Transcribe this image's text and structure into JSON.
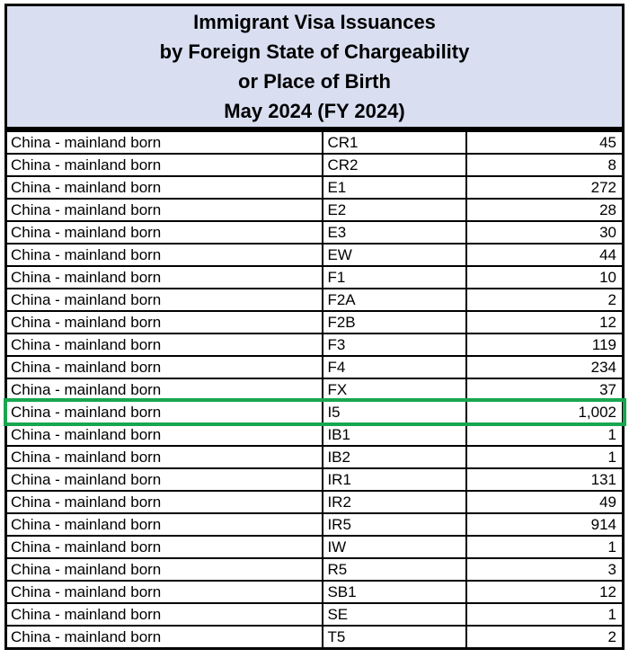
{
  "document": {
    "title_lines": [
      "Immigrant Visa Issuances",
      "by Foreign State of Chargeability",
      "or Place of Birth",
      "May 2024 (FY 2024)"
    ]
  },
  "table": {
    "columns": [
      "place_of_birth",
      "visa_class",
      "issuances"
    ],
    "rows": [
      {
        "place": "China - mainland born",
        "visa_class": "CR1",
        "issuances": "45"
      },
      {
        "place": "China - mainland born",
        "visa_class": "CR2",
        "issuances": "8"
      },
      {
        "place": "China - mainland born",
        "visa_class": "E1",
        "issuances": "272"
      },
      {
        "place": "China - mainland born",
        "visa_class": "E2",
        "issuances": "28"
      },
      {
        "place": "China - mainland born",
        "visa_class": "E3",
        "issuances": "30"
      },
      {
        "place": "China - mainland born",
        "visa_class": "EW",
        "issuances": "44"
      },
      {
        "place": "China - mainland born",
        "visa_class": "F1",
        "issuances": "10"
      },
      {
        "place": "China - mainland born",
        "visa_class": "F2A",
        "issuances": "2"
      },
      {
        "place": "China - mainland born",
        "visa_class": "F2B",
        "issuances": "12"
      },
      {
        "place": "China - mainland born",
        "visa_class": "F3",
        "issuances": "119"
      },
      {
        "place": "China - mainland born",
        "visa_class": "F4",
        "issuances": "234"
      },
      {
        "place": "China - mainland born",
        "visa_class": "FX",
        "issuances": "37"
      },
      {
        "place": "China - mainland born",
        "visa_class": "I5",
        "issuances": "1,002"
      },
      {
        "place": "China - mainland born",
        "visa_class": "IB1",
        "issuances": "1"
      },
      {
        "place": "China - mainland born",
        "visa_class": "IB2",
        "issuances": "1"
      },
      {
        "place": "China - mainland born",
        "visa_class": "IR1",
        "issuances": "131"
      },
      {
        "place": "China - mainland born",
        "visa_class": "IR2",
        "issuances": "49"
      },
      {
        "place": "China - mainland born",
        "visa_class": "IR5",
        "issuances": "914"
      },
      {
        "place": "China - mainland born",
        "visa_class": "IW",
        "issuances": "1"
      },
      {
        "place": "China - mainland born",
        "visa_class": "R5",
        "issuances": "3"
      },
      {
        "place": "China - mainland born",
        "visa_class": "SB1",
        "issuances": "12"
      },
      {
        "place": "China - mainland born",
        "visa_class": "SE",
        "issuances": "1"
      },
      {
        "place": "China - mainland born",
        "visa_class": "T5",
        "issuances": "2"
      }
    ]
  },
  "highlight": {
    "visa_class": "I5",
    "color": "#18A650"
  },
  "colors": {
    "title_background": "#D9DFF1",
    "border": "#000000",
    "row_background": "#FFFFFF",
    "text": "#000000"
  }
}
